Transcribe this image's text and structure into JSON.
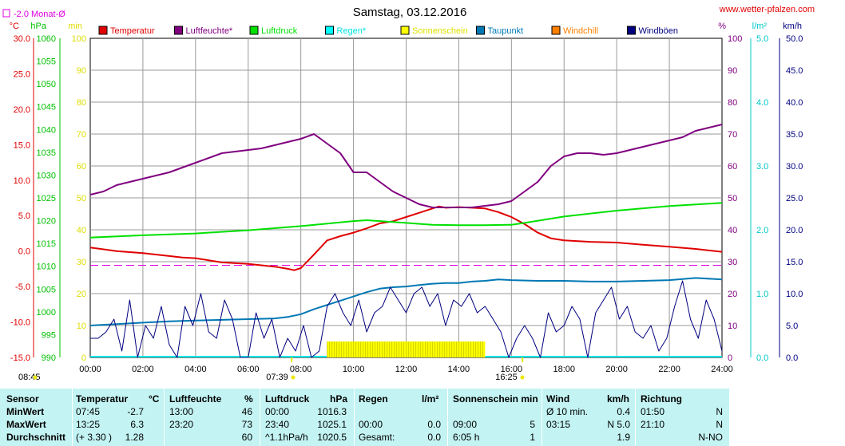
{
  "title": "Samstag, 03.12.2016",
  "website": "www.wetter-pfalzen.com",
  "colors": {
    "temperature": "#e00000",
    "humidity": "#800080",
    "pressure": "#00e000",
    "rain": "#00ffff",
    "sunshine": "#ffff00",
    "dewpoint": "#0078b4",
    "windchill": "#ff8000",
    "gusts": "#000080",
    "monthly_avg": "#e000e0"
  },
  "units": {
    "celsius": "°C",
    "hpa": "hPa",
    "minutes": "min",
    "percent": "%",
    "rain": "l/m²",
    "kmh": "km/h"
  },
  "monthly_avg_label": "-2.0 Monat-Ø",
  "time_markers": {
    "sunrise": "08:45",
    "dawn": "07:39",
    "sunset": "16:25"
  },
  "chart_data": {
    "type": "line",
    "x_unit": "hours",
    "xlim": [
      0,
      24
    ],
    "x_ticks": [
      "00:00",
      "02:00",
      "04:00",
      "06:00",
      "08:00",
      "10:00",
      "12:00",
      "14:00",
      "16:00",
      "18:00",
      "20:00",
      "22:00",
      "24:00"
    ],
    "axes": {
      "temperature": {
        "label": "°C",
        "range": [
          -15,
          30
        ],
        "ticks": [
          "30.0",
          "25.0",
          "20.0",
          "15.0",
          "10.0",
          "5.0",
          "0.0",
          "-5.0",
          "-10.0",
          "-15.0"
        ]
      },
      "pressure": {
        "label": "hPa",
        "range": [
          990,
          1060
        ],
        "ticks": [
          "1060",
          "1055",
          "1050",
          "1045",
          "1040",
          "1035",
          "1030",
          "1025",
          "1020",
          "1015",
          "1010",
          "1005",
          "1000",
          "995",
          "990"
        ]
      },
      "sunshine": {
        "label": "min",
        "range": [
          0,
          100
        ],
        "ticks": [
          "100",
          "90",
          "80",
          "70",
          "60",
          "50",
          "40",
          "30",
          "20",
          "10",
          "0"
        ]
      },
      "humidity": {
        "label": "%",
        "range": [
          0,
          100
        ],
        "ticks": [
          "100",
          "90",
          "80",
          "70",
          "60",
          "50",
          "40",
          "30",
          "20",
          "10",
          "0"
        ]
      },
      "rain": {
        "label": "l/m²",
        "range": [
          0,
          5
        ],
        "ticks": [
          "5.0",
          "4.0",
          "3.0",
          "2.0",
          "1.0",
          "0.0"
        ]
      },
      "wind": {
        "label": "km/h",
        "range": [
          0,
          50
        ],
        "ticks": [
          "50.0",
          "45.0",
          "40.0",
          "35.0",
          "30.0",
          "25.0",
          "20.0",
          "15.0",
          "10.0",
          "5.0",
          "0.0"
        ]
      }
    },
    "legend": [
      {
        "name": "Temperatur",
        "color": "#e00000"
      },
      {
        "name": "Luftfeuchte*",
        "color": "#800080"
      },
      {
        "name": "Luftdruck",
        "color": "#00e000"
      },
      {
        "name": "Regen*",
        "color": "#00ffff"
      },
      {
        "name": "Sonnenschein",
        "color": "#ffff00"
      },
      {
        "name": "Taupunkt",
        "color": "#0078b4"
      },
      {
        "name": "Windchill",
        "color": "#ff8000"
      },
      {
        "name": "Windböen",
        "color": "#000080"
      }
    ],
    "series": [
      {
        "name": "Temperatur",
        "axis": "temperature",
        "color": "#e00000",
        "x": [
          0,
          1,
          2,
          3,
          3.5,
          4,
          4.5,
          5,
          6,
          7,
          7.5,
          7.75,
          8,
          8.5,
          9,
          9.5,
          10,
          10.5,
          11,
          11.5,
          12,
          12.5,
          13,
          13.25,
          13.5,
          14,
          14.5,
          15,
          15.5,
          16,
          16.5,
          17,
          17.5,
          18,
          19,
          20,
          21,
          22,
          23,
          24
        ],
        "y": [
          0.5,
          0,
          -0.3,
          -0.7,
          -0.9,
          -1,
          -1.3,
          -1.6,
          -1.8,
          -2.2,
          -2.5,
          -2.7,
          -2.4,
          -0.5,
          1.5,
          2.1,
          2.6,
          3.2,
          3.9,
          4.2,
          4.8,
          5.4,
          6,
          6.3,
          6.1,
          6.2,
          6.1,
          6.0,
          5.5,
          4.8,
          3.8,
          2.6,
          1.8,
          1.5,
          1.3,
          1.2,
          0.9,
          0.6,
          0.3,
          -0.1
        ]
      },
      {
        "name": "Luftfeuchte*",
        "axis": "humidity",
        "color": "#800080",
        "x": [
          0,
          0.5,
          1,
          1.5,
          2,
          3,
          4,
          5,
          5.5,
          6,
          6.5,
          7,
          7.5,
          8,
          8.5,
          9,
          9.5,
          10,
          10.5,
          11,
          11.5,
          12,
          12.5,
          13,
          13.5,
          14,
          14.5,
          15,
          15.5,
          16,
          16.5,
          17,
          17.5,
          18,
          18.5,
          19,
          19.5,
          20,
          21,
          22,
          22.5,
          23,
          23.5,
          24
        ],
        "y": [
          51,
          52,
          54,
          55,
          56,
          58,
          61,
          64,
          64.5,
          65,
          65.5,
          66.5,
          67.5,
          68.5,
          70,
          67,
          64,
          58,
          58,
          55,
          52,
          50,
          48,
          47,
          47,
          47,
          47,
          47.5,
          48,
          49,
          52,
          55,
          60,
          63,
          64,
          64,
          63.5,
          64,
          66,
          68,
          69,
          71,
          72,
          73
        ]
      },
      {
        "name": "Luftdruck",
        "axis": "pressure",
        "color": "#00e000",
        "x": [
          0,
          2,
          4,
          6,
          8,
          10,
          10.5,
          11,
          12,
          13,
          14,
          15,
          16,
          16.5,
          18,
          20,
          22,
          24
        ],
        "y": [
          1016.3,
          1016.8,
          1017.2,
          1017.9,
          1018.8,
          1019.9,
          1020.1,
          1019.9,
          1019.5,
          1019.1,
          1019.0,
          1019.0,
          1019.1,
          1019.5,
          1020.9,
          1022.2,
          1023.2,
          1023.9
        ]
      },
      {
        "name": "Taupunkt",
        "axis": "temperature",
        "color": "#0078b4",
        "x": [
          0,
          1,
          2,
          3,
          4,
          5,
          6,
          7,
          7.5,
          8,
          8.5,
          9,
          9.5,
          10,
          10.5,
          11,
          11.5,
          12,
          12.5,
          13,
          13.5,
          14,
          14.5,
          15,
          15.5,
          16,
          17,
          18,
          19,
          20,
          21,
          22,
          23,
          24
        ],
        "y": [
          -10.5,
          -10.3,
          -10.1,
          -9.9,
          -9.8,
          -9.7,
          -9.6,
          -9.5,
          -9.3,
          -8.9,
          -8.2,
          -7.6,
          -7,
          -6.4,
          -5.8,
          -5.3,
          -5.1,
          -5,
          -4.8,
          -4.6,
          -4.5,
          -4.5,
          -4.3,
          -4.2,
          -4.0,
          -4.1,
          -4.2,
          -4.2,
          -4.3,
          -4.3,
          -4.2,
          -4.1,
          -3.8,
          -4.0
        ]
      },
      {
        "name": "Windböen",
        "axis": "wind",
        "color": "#000080",
        "x": [
          0,
          0.3,
          0.6,
          0.9,
          1.2,
          1.5,
          1.8,
          2.1,
          2.4,
          2.7,
          3,
          3.3,
          3.6,
          3.9,
          4.2,
          4.5,
          4.8,
          5.1,
          5.4,
          5.7,
          6,
          6.3,
          6.6,
          6.9,
          7.2,
          7.5,
          7.8,
          8.1,
          8.4,
          8.7,
          9,
          9.3,
          9.6,
          9.9,
          10.2,
          10.5,
          10.8,
          11.1,
          11.4,
          11.7,
          12,
          12.3,
          12.6,
          12.9,
          13.2,
          13.5,
          13.8,
          14.1,
          14.4,
          14.7,
          15,
          15.3,
          15.6,
          15.9,
          16.2,
          16.5,
          16.8,
          17.1,
          17.4,
          17.7,
          18,
          18.3,
          18.6,
          18.9,
          19.2,
          19.5,
          19.8,
          20.1,
          20.4,
          20.7,
          21,
          21.3,
          21.6,
          21.9,
          22.2,
          22.5,
          22.8,
          23.1,
          23.4,
          23.7,
          24
        ],
        "y": [
          3,
          3,
          4,
          6,
          1,
          9,
          0,
          5,
          3,
          8,
          2,
          0,
          8,
          5,
          10,
          4,
          3,
          9,
          6,
          0,
          0,
          7,
          3,
          6,
          0,
          3,
          1,
          5,
          0,
          1,
          8,
          10,
          7,
          5,
          9,
          4,
          7,
          8,
          11,
          9,
          7,
          10,
          11,
          8,
          10,
          5,
          9,
          8,
          10,
          7,
          8,
          6,
          4,
          0,
          3,
          5,
          3,
          0,
          7,
          4,
          5,
          8,
          6,
          0,
          7,
          9,
          11,
          6,
          8,
          4,
          3,
          5,
          1,
          3,
          8,
          12,
          6,
          3,
          9,
          6,
          1
        ]
      },
      {
        "name": "Sonnenschein",
        "axis": "sunshine",
        "color": "#ffff00",
        "x": [
          9,
          15
        ],
        "y": [
          5,
          5
        ]
      }
    ]
  },
  "table": {
    "columns": [
      {
        "header": "Sensor",
        "unit": ""
      },
      {
        "header": "Temperatur",
        "unit": "°C"
      },
      {
        "header": "Luftfeuchte",
        "unit": "%"
      },
      {
        "header": "Luftdruck",
        "unit": "hPa"
      },
      {
        "header": "Regen",
        "unit": "l/m²"
      },
      {
        "header": "Sonnenschein min",
        "unit": ""
      },
      {
        "header": "Wind",
        "unit": "km/h"
      },
      {
        "header": "Richtung",
        "unit": ""
      }
    ],
    "rows": [
      {
        "label": "MinWert",
        "cells": [
          [
            "07:45",
            "-2.7"
          ],
          [
            "13:00",
            "46"
          ],
          [
            "00:00",
            "1016.3"
          ],
          [
            "",
            ""
          ],
          [
            "",
            ""
          ],
          [
            "Ø 10 min.",
            "0.4"
          ],
          [
            "01:50",
            "N"
          ]
        ]
      },
      {
        "label": "MaxWert",
        "cells": [
          [
            "13:25",
            "6.3"
          ],
          [
            "23:20",
            "73"
          ],
          [
            "23:40",
            "1025.1"
          ],
          [
            "00:00",
            "0.0"
          ],
          [
            "09:00",
            "5"
          ],
          [
            "03:15",
            "N 5.0"
          ],
          [
            "21:10",
            "N"
          ]
        ]
      },
      {
        "label": "Durchschnitt",
        "cells": [
          [
            "(+ 3.30 )",
            "1.28"
          ],
          [
            "",
            "60"
          ],
          [
            "^1.1hPa/h",
            "1020.5"
          ],
          [
            "Gesamt:",
            "0.0"
          ],
          [
            "6:05 h",
            "1"
          ],
          [
            "",
            "1.9"
          ],
          [
            "",
            "N-NO"
          ]
        ]
      }
    ]
  }
}
